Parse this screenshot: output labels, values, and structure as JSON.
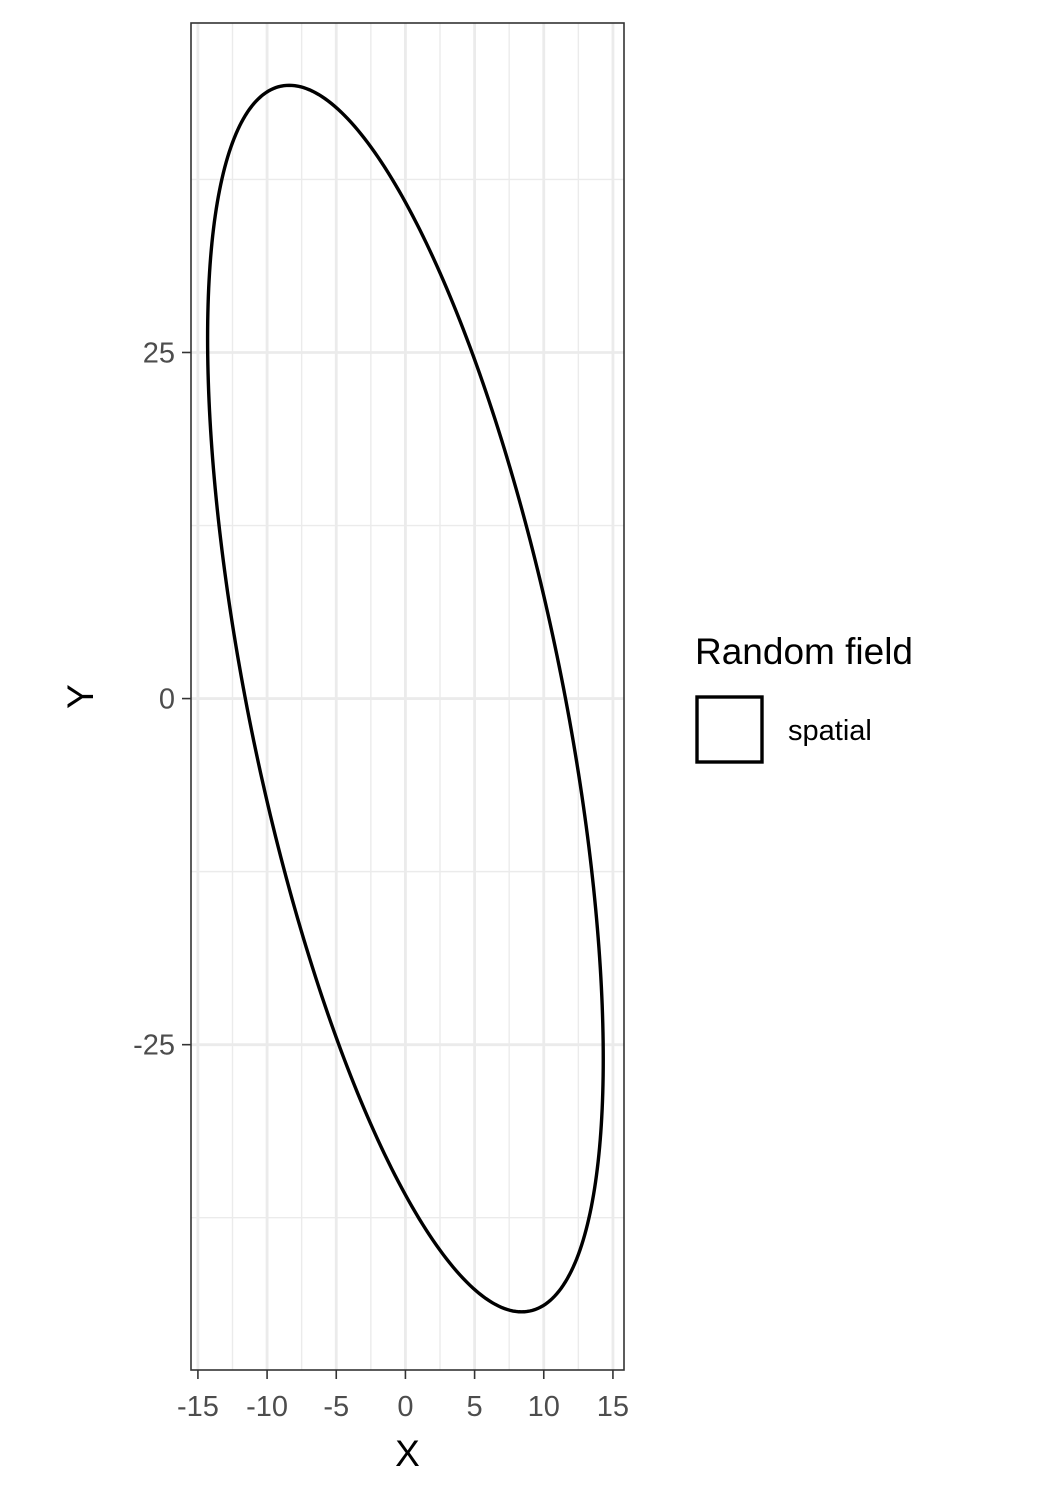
{
  "chart_data": {
    "type": "line",
    "title": "",
    "xlabel": "X",
    "ylabel": "Y",
    "xlim": [
      -15.5,
      15.8
    ],
    "ylim": [
      -48.5,
      48.8
    ],
    "x_ticks": [
      -15,
      -10,
      -5,
      0,
      5,
      10,
      15
    ],
    "x_tick_labels": [
      "-15",
      "-10",
      "-5",
      "0",
      "5",
      "10",
      "15"
    ],
    "y_ticks": [
      -25,
      0,
      25
    ],
    "y_tick_labels": [
      "-25",
      "0",
      "25"
    ],
    "grid": true,
    "legend": {
      "title": "Random field",
      "position": "right"
    },
    "series": [
      {
        "name": "spatial",
        "shape": "ellipse",
        "center": [
          0,
          0
        ],
        "extent_x": [
          -14.3,
          14.3
        ],
        "extent_y": [
          -44.3,
          44.3
        ],
        "topmost_point": [
          -8.4,
          44.3
        ],
        "bottommost_point": [
          8.4,
          -44.3
        ],
        "color": "#000000"
      }
    ]
  },
  "colors": {
    "grid": "#ebebeb",
    "panel_border": "#333333",
    "tick_text": "#4d4d4d",
    "line": "#000000"
  }
}
